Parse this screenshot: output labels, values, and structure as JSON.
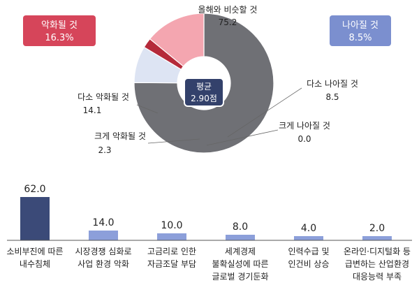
{
  "badges": {
    "worse": {
      "title": "악화될 것",
      "value": "16.3%",
      "color": "#d6455a"
    },
    "better": {
      "title": "나아질 것",
      "value": "8.5%",
      "color": "#7b8fcf"
    }
  },
  "center": {
    "title": "평균",
    "value": "2.90점",
    "color": "#33416b"
  },
  "chart_data": [
    {
      "type": "pie",
      "variant": "donut",
      "slices": [
        {
          "name": "올해와 비슷할 것",
          "value": 75.2,
          "label": "75.2",
          "color": "#6f7075"
        },
        {
          "name": "다소 나아질 것",
          "value": 8.5,
          "label": "8.5",
          "color": "#dde4f3"
        },
        {
          "name": "크게 나아질 것",
          "value": 0.0,
          "label": "0.0",
          "color": "#3c5aa0"
        },
        {
          "name": "크게 악화될 것",
          "value": 2.3,
          "label": "2.3",
          "color": "#b52a3a"
        },
        {
          "name": "다소 악화될 것",
          "value": 14.1,
          "label": "14.1",
          "color": "#f4a6b0"
        }
      ]
    },
    {
      "type": "bar",
      "categories": [
        [
          "소비부진에 따른",
          "내수침체"
        ],
        [
          "시장경쟁 심화로",
          "사업 환경 악화"
        ],
        [
          "고금리로 인한",
          "자금조달 부담"
        ],
        [
          "세계경제",
          "불확실성에 따른",
          "글로벌 경기둔화"
        ],
        [
          "인력수급 및",
          "인건비 상승"
        ],
        [
          "온라인·디지털화 등",
          "급변하는 산업환경",
          "대응능력 부족"
        ]
      ],
      "values": [
        62.0,
        14.0,
        10.0,
        8.0,
        4.0,
        2.0
      ],
      "value_labels": [
        "62.0",
        "14.0",
        "10.0",
        "8.0",
        "4.0",
        "2.0"
      ],
      "bar_colors": [
        "#3b4a78",
        "#8c9fda",
        "#8c9fda",
        "#8c9fda",
        "#8c9fda",
        "#8c9fda"
      ],
      "ylim": [
        0,
        62
      ]
    }
  ]
}
